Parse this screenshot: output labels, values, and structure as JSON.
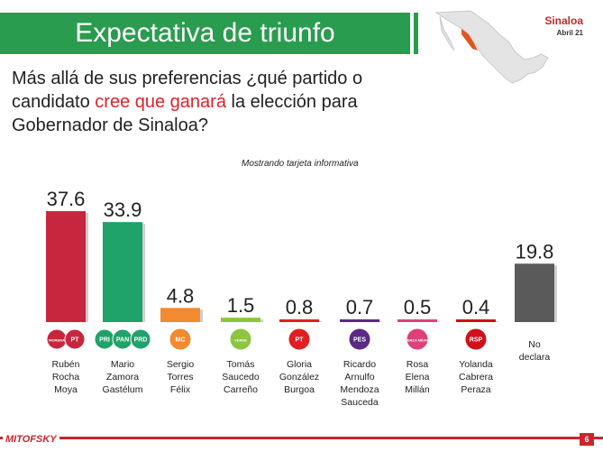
{
  "header": {
    "title": "Expectativa de triunfo",
    "region": "Sinaloa",
    "date": "Abril 21"
  },
  "question": {
    "part1": "Más allá de sus preferencias ¿qué partido o candidato ",
    "highlight": "cree que ganará",
    "part2": " la elección para Gobernador de Sinaloa?"
  },
  "note": "Mostrando tarjeta informativa",
  "footer": {
    "logo": "MITOFSKY",
    "page": "6"
  },
  "chart_data": {
    "type": "bar",
    "title": "Expectativa de triunfo",
    "xlabel": "",
    "ylabel": "",
    "ylim": [
      0,
      40
    ],
    "grid": false,
    "categories": [
      [
        "Rubén",
        "Rocha",
        "Moya"
      ],
      [
        "Mario",
        "Zamora",
        "Gastélum"
      ],
      [
        "Sergio",
        "Torres",
        "Félix"
      ],
      [
        "Tomás",
        "Saucedo",
        "Carreño"
      ],
      [
        "Gloria",
        "González",
        "Burgoa"
      ],
      [
        "Ricardo",
        "Arnulfo",
        "Mendoza",
        "Sauceda"
      ],
      [
        "Rosa",
        "Elena",
        "Millán"
      ],
      [
        "Yolanda",
        "Cabrera",
        "Peraza"
      ],
      [
        "No",
        "declara"
      ]
    ],
    "values": [
      37.6,
      33.9,
      4.8,
      1.5,
      0.8,
      0.7,
      0.5,
      0.4,
      19.8
    ],
    "labels": [
      "37.6",
      "33.9",
      "4.8",
      "1.5",
      "0.8",
      "0.7",
      "0.5",
      "0.4",
      "19.8"
    ],
    "colors": [
      "#c8263f",
      "#1fa36a",
      "#f28a30",
      "#8cc63f",
      "#e02020",
      "#5b2a86",
      "#e0407a",
      "#d0101a",
      "#5a5a5a"
    ],
    "party_logos": [
      [
        "MORENA",
        "PT"
      ],
      [
        "PRI",
        "PAN",
        "PRD"
      ],
      [
        "MC"
      ],
      [
        "VERDE"
      ],
      [
        "PT"
      ],
      [
        "PES"
      ],
      [
        "FUERZA MÉXICO"
      ],
      [
        "RSP"
      ],
      []
    ]
  }
}
